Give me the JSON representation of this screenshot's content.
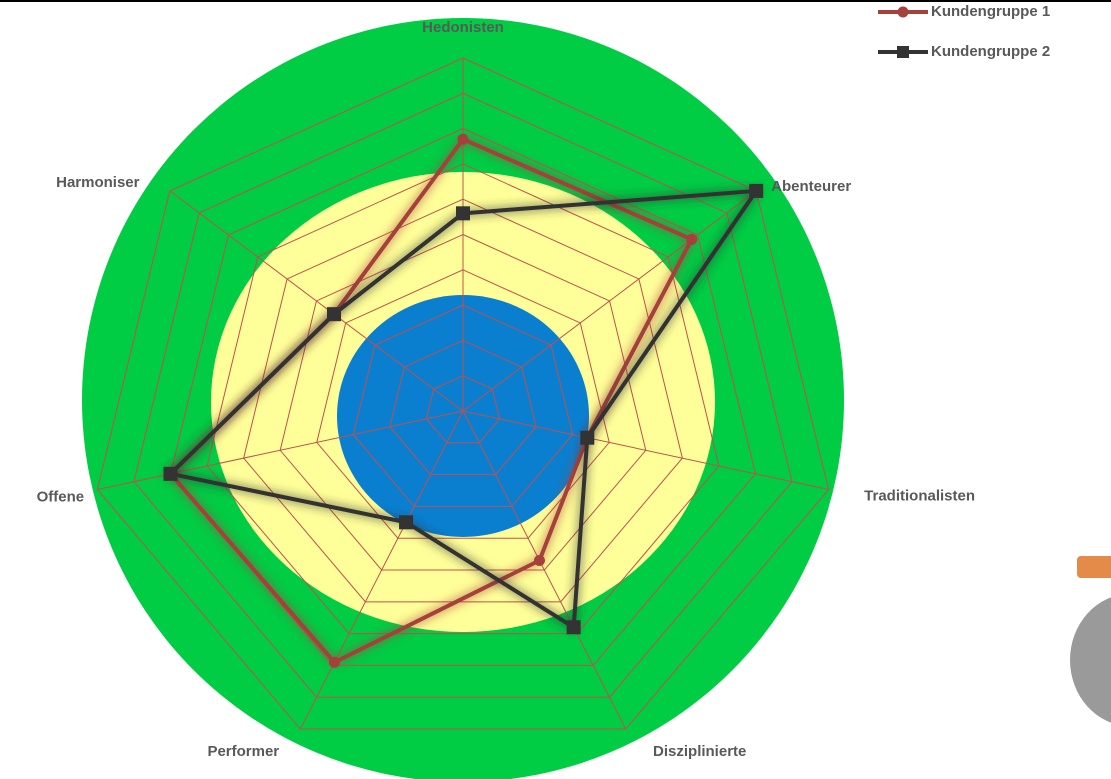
{
  "chart_data": {
    "type": "radar",
    "categories": [
      "Hedonisten",
      "Abenteurer",
      "Traditionalisten",
      "Disziplinierte",
      "Performer",
      "Offene",
      "Harmoniser"
    ],
    "series": [
      {
        "name": "Kundengruppe 1",
        "color": "#a5403b",
        "marker": "circle",
        "values": [
          7.7,
          7.8,
          3.4,
          4.7,
          7.9,
          8.0,
          4.4
        ]
      },
      {
        "name": "Kundengruppe 2",
        "color": "#333333",
        "marker": "square",
        "values": [
          5.6,
          10,
          3.4,
          6.8,
          3.5,
          8.0,
          4.4
        ]
      }
    ],
    "ylim": [
      0,
      10
    ],
    "yticks": [
      1,
      2,
      3,
      4,
      5,
      6,
      7,
      8,
      9,
      10
    ],
    "grid": true,
    "grid_color": "#c0504d",
    "legend": "top-right"
  }
}
